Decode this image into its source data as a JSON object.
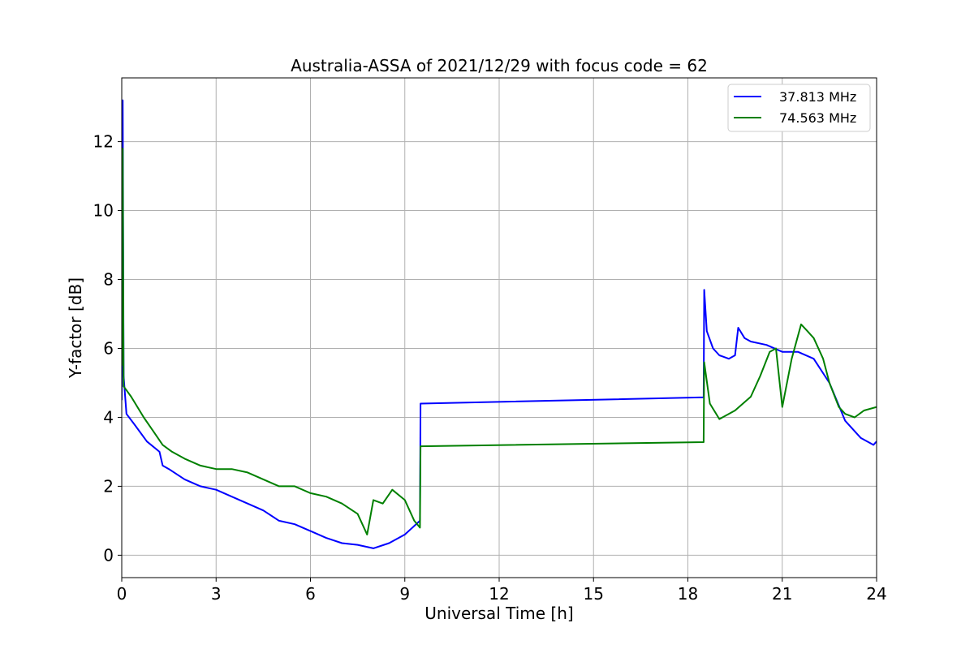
{
  "chart_data": {
    "type": "line",
    "title": "Australia-ASSA of 2021/12/29 with focus code = 62",
    "xlabel": "Universal Time [h]",
    "ylabel": "Y-factor [dB]",
    "xlim": [
      0,
      24
    ],
    "ylim": [
      -0.65,
      13.85
    ],
    "xticks": [
      0,
      3,
      6,
      9,
      12,
      15,
      18,
      21,
      24
    ],
    "yticks": [
      0,
      2,
      4,
      6,
      8,
      10,
      12
    ],
    "grid": true,
    "legend_position": "top-right",
    "series": [
      {
        "name": "37.813 MHz",
        "color": "#0000ff",
        "x": [
          0,
          0.03,
          0.06,
          0.15,
          0.4,
          0.8,
          1.2,
          1.3,
          1.5,
          2.0,
          2.5,
          3.0,
          3.5,
          4.0,
          4.5,
          5.0,
          5.5,
          6.0,
          6.5,
          7.0,
          7.5,
          8.0,
          8.5,
          9.0,
          9.3,
          9.48,
          9.5,
          18.5,
          18.52,
          18.6,
          18.8,
          19.0,
          19.3,
          19.5,
          19.6,
          19.8,
          20.0,
          20.5,
          21.0,
          21.5,
          22.0,
          22.5,
          23.0,
          23.5,
          23.9,
          24.0
        ],
        "y": [
          4.5,
          13.2,
          5.2,
          4.1,
          3.8,
          3.3,
          3.0,
          2.6,
          2.5,
          2.2,
          2.0,
          1.9,
          1.7,
          1.5,
          1.3,
          1.0,
          0.9,
          0.7,
          0.5,
          0.35,
          0.3,
          0.2,
          0.35,
          0.6,
          0.85,
          1.0,
          4.4,
          4.58,
          7.7,
          6.5,
          6.0,
          5.8,
          5.7,
          5.8,
          6.6,
          6.3,
          6.2,
          6.1,
          5.9,
          5.9,
          5.7,
          5.0,
          3.9,
          3.4,
          3.2,
          3.3
        ]
      },
      {
        "name": "74.563 MHz",
        "color": "#008000",
        "x": [
          0,
          0.03,
          0.06,
          0.3,
          0.7,
          1.0,
          1.3,
          1.6,
          2.0,
          2.5,
          3.0,
          3.5,
          4.0,
          4.5,
          5.0,
          5.5,
          6.0,
          6.5,
          7.0,
          7.5,
          7.8,
          8.0,
          8.3,
          8.6,
          9.0,
          9.3,
          9.48,
          9.5,
          18.5,
          18.52,
          18.7,
          19.0,
          19.5,
          20.0,
          20.3,
          20.6,
          20.8,
          21.0,
          21.3,
          21.6,
          21.8,
          22.0,
          22.3,
          22.5,
          22.8,
          23.0,
          23.3,
          23.6,
          24.0
        ],
        "y": [
          5.5,
          11.8,
          4.9,
          4.6,
          4.0,
          3.6,
          3.2,
          3.0,
          2.8,
          2.6,
          2.5,
          2.5,
          2.4,
          2.2,
          2.0,
          2.0,
          1.8,
          1.7,
          1.5,
          1.2,
          0.6,
          1.6,
          1.5,
          1.9,
          1.6,
          1.0,
          0.8,
          3.16,
          3.28,
          5.6,
          4.4,
          3.95,
          4.2,
          4.6,
          5.2,
          5.9,
          6.0,
          4.3,
          5.7,
          6.7,
          6.5,
          6.3,
          5.7,
          5.0,
          4.3,
          4.1,
          4.0,
          4.2,
          4.3
        ]
      }
    ]
  }
}
